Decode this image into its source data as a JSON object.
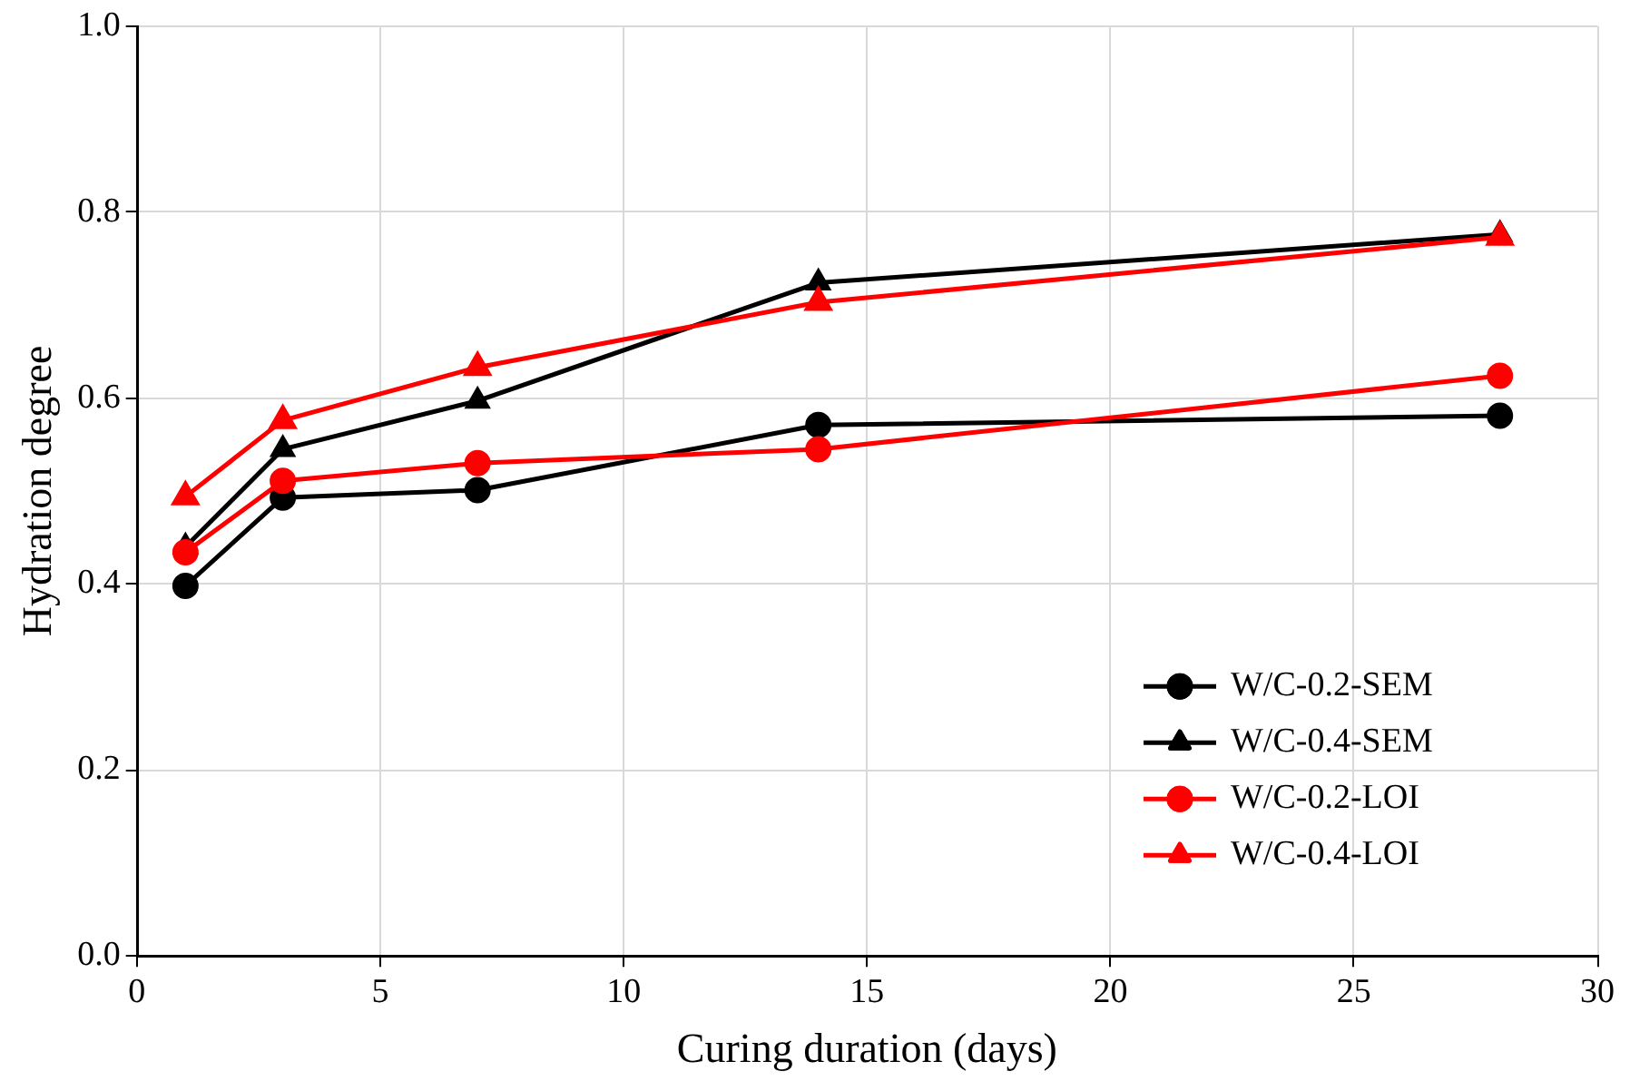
{
  "chart_data": {
    "type": "line",
    "xlabel": "Curing duration (days)",
    "ylabel": "Hydration degree",
    "x": [
      1,
      3,
      7,
      14,
      28
    ],
    "xlim": [
      0,
      30
    ],
    "xticks": [
      0,
      5,
      10,
      15,
      20,
      25,
      30
    ],
    "ylim": [
      0,
      1
    ],
    "yticks": [
      {
        "value": 0,
        "label": "0.0"
      },
      {
        "value": 0.2,
        "label": "0.2"
      },
      {
        "value": 0.4,
        "label": "0.4"
      },
      {
        "value": 0.6,
        "label": "0.6"
      },
      {
        "value": 0.8,
        "label": "0.8"
      },
      {
        "value": 1,
        "label": "1.0"
      }
    ],
    "grid": true,
    "legend": "bottom right",
    "line_style": "solid",
    "series": [
      {
        "name": "W/C-0.2-SEM",
        "color": "#000000",
        "marker": "circle",
        "values": [
          0.398,
          0.493,
          0.501,
          0.571,
          0.581
        ]
      },
      {
        "name": "W/C-0.4-SEM",
        "color": "#000000",
        "marker": "triangle",
        "values": [
          0.44,
          0.545,
          0.597,
          0.724,
          0.776
        ]
      },
      {
        "name": "W/C-0.2-LOI",
        "color": "#ff0000",
        "marker": "circle",
        "values": [
          0.434,
          0.511,
          0.53,
          0.545,
          0.624
        ]
      },
      {
        "name": "W/C-0.4-LOI",
        "color": "#ff0000",
        "marker": "triangle",
        "values": [
          0.494,
          0.576,
          0.633,
          0.703,
          0.773
        ]
      }
    ]
  }
}
